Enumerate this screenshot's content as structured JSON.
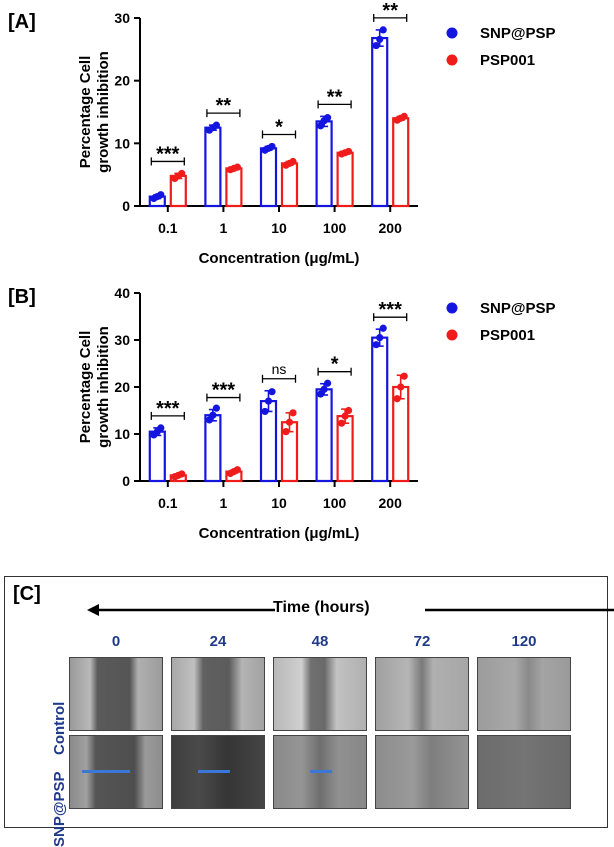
{
  "panel_a": {
    "label": "[A]",
    "chart_data": {
      "type": "bar",
      "categories": [
        "0.1",
        "1",
        "10",
        "100",
        "200"
      ],
      "series": [
        {
          "name": "SNP@PSP",
          "color": "#1515e0",
          "values": [
            1.5,
            12.5,
            9.2,
            13.5,
            26.8
          ],
          "errors": [
            0.3,
            0.4,
            0.3,
            0.8,
            1.3
          ],
          "points": [
            [
              1.2,
              1.5,
              1.8
            ],
            [
              12.1,
              12.5,
              12.9
            ],
            [
              8.9,
              9.2,
              9.5
            ],
            [
              12.8,
              13.6,
              14.1
            ],
            [
              25.6,
              26.6,
              28.1
            ]
          ]
        },
        {
          "name": "PSP001",
          "color": "#f01c1c",
          "values": [
            4.8,
            6.0,
            6.8,
            8.5,
            14.0
          ],
          "errors": [
            0.4,
            0.2,
            0.3,
            0.2,
            0.3
          ],
          "points": [
            [
              4.4,
              4.8,
              5.2
            ],
            [
              5.8,
              6.0,
              6.2
            ],
            [
              6.5,
              6.8,
              7.1
            ],
            [
              8.3,
              8.5,
              8.7
            ],
            [
              13.7,
              14.0,
              14.3
            ]
          ]
        }
      ],
      "significance": [
        "***",
        "**",
        "*",
        "**",
        "**"
      ],
      "ylim": [
        0,
        30
      ],
      "yticks": [
        "0",
        "10",
        "20",
        "30"
      ],
      "ylabel_line1": "Percentage Cell",
      "ylabel_line2": "growth inhibition",
      "xlabel": "Concentration (μg/mL)",
      "legend_position": "top-right"
    }
  },
  "panel_b": {
    "label": "[B]",
    "chart_data": {
      "type": "bar",
      "categories": [
        "0.1",
        "1",
        "10",
        "100",
        "200"
      ],
      "series": [
        {
          "name": "SNP@PSP",
          "color": "#1515e0",
          "values": [
            10.5,
            14.0,
            17.0,
            19.5,
            30.5
          ],
          "errors": [
            0.8,
            1.2,
            2.2,
            1.2,
            1.8
          ],
          "points": [
            [
              9.8,
              10.5,
              11.3
            ],
            [
              13.0,
              14.0,
              15.5
            ],
            [
              14.8,
              17.0,
              19.0
            ],
            [
              18.5,
              19.5,
              20.8
            ],
            [
              29.0,
              30.5,
              32.5
            ]
          ]
        },
        {
          "name": "PSP001",
          "color": "#f01c1c",
          "values": [
            1.2,
            2.0,
            12.5,
            13.8,
            20.0
          ],
          "errors": [
            0.3,
            0.3,
            2.0,
            1.5,
            2.5
          ],
          "points": [
            [
              0.9,
              1.2,
              1.5
            ],
            [
              1.6,
              2.0,
              2.4
            ],
            [
              10.5,
              12.5,
              14.5
            ],
            [
              12.3,
              13.8,
              15.0
            ],
            [
              17.5,
              20.0,
              22.3
            ]
          ]
        }
      ],
      "significance": [
        "***",
        "***",
        "ns",
        "*",
        "***"
      ],
      "ylim": [
        0,
        40
      ],
      "yticks": [
        "0",
        "10",
        "20",
        "30",
        "40"
      ],
      "ylabel_line1": "Percentage Cell",
      "ylabel_line2": "growth inhibition",
      "xlabel": "Concentration (μg/mL)",
      "legend_position": "top-right"
    }
  },
  "panel_c": {
    "label": "[C]",
    "time_label": "Time (hours)",
    "timepoints": [
      "0",
      "24",
      "48",
      "72",
      "120"
    ],
    "rows": [
      "Control",
      "SNP@PSP"
    ],
    "label_color": "#1f3a8a"
  }
}
